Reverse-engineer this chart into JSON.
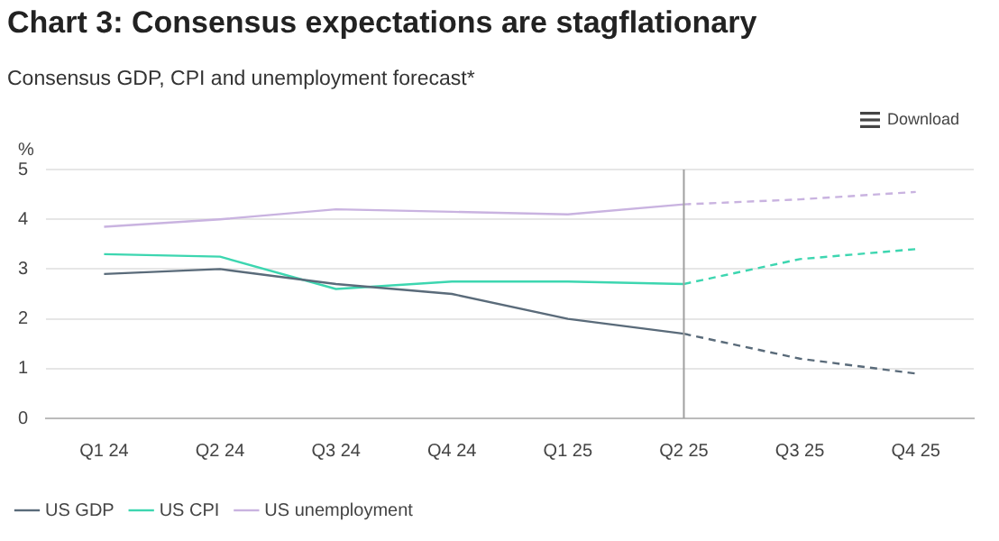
{
  "chart_data": {
    "type": "line",
    "title": "Chart 3: Consensus expectations are stagflationary",
    "subtitle": "Consensus GDP, CPI and unemployment forecast*",
    "ylabel": "%",
    "categories": [
      "Q1 24",
      "Q2 24",
      "Q3 24",
      "Q4 24",
      "Q1 25",
      "Q2 25",
      "Q3 25",
      "Q4 25"
    ],
    "series": [
      {
        "name": "US GDP",
        "color": "#5a6b7a",
        "values": [
          2.9,
          3.0,
          2.7,
          2.5,
          2.0,
          1.7,
          null,
          null
        ]
      },
      {
        "name": "US CPI",
        "color": "#3dd6b0",
        "values": [
          3.3,
          3.25,
          2.6,
          2.75,
          2.75,
          2.7,
          null,
          null
        ]
      },
      {
        "name": "US unemployment",
        "color": "#c9b3e0",
        "values": [
          3.85,
          4.0,
          4.2,
          4.15,
          4.1,
          4.3,
          null,
          null
        ]
      },
      {
        "color": "#5a6b7a",
        "line_style": "dashed",
        "values": [
          null,
          null,
          null,
          null,
          null,
          1.7,
          1.2,
          0.9
        ]
      },
      {
        "color": "#3dd6b0",
        "line_style": "dashed",
        "values": [
          null,
          null,
          null,
          null,
          null,
          2.7,
          3.2,
          3.4
        ]
      },
      {
        "color": "#c9b3e0",
        "line_style": "dashed",
        "values": [
          null,
          null,
          null,
          null,
          null,
          4.3,
          4.4,
          4.55
        ]
      }
    ],
    "ylim": [
      0,
      5
    ],
    "yticks": [
      0,
      1,
      2,
      3,
      4,
      5
    ],
    "grid": "y",
    "legend": "bottom left",
    "marker": "none",
    "ref_lines": [
      {
        "axis": "x",
        "value": "Q2 25",
        "color": "#a0a0a0"
      }
    ],
    "annotations": [
      "Download"
    ]
  }
}
